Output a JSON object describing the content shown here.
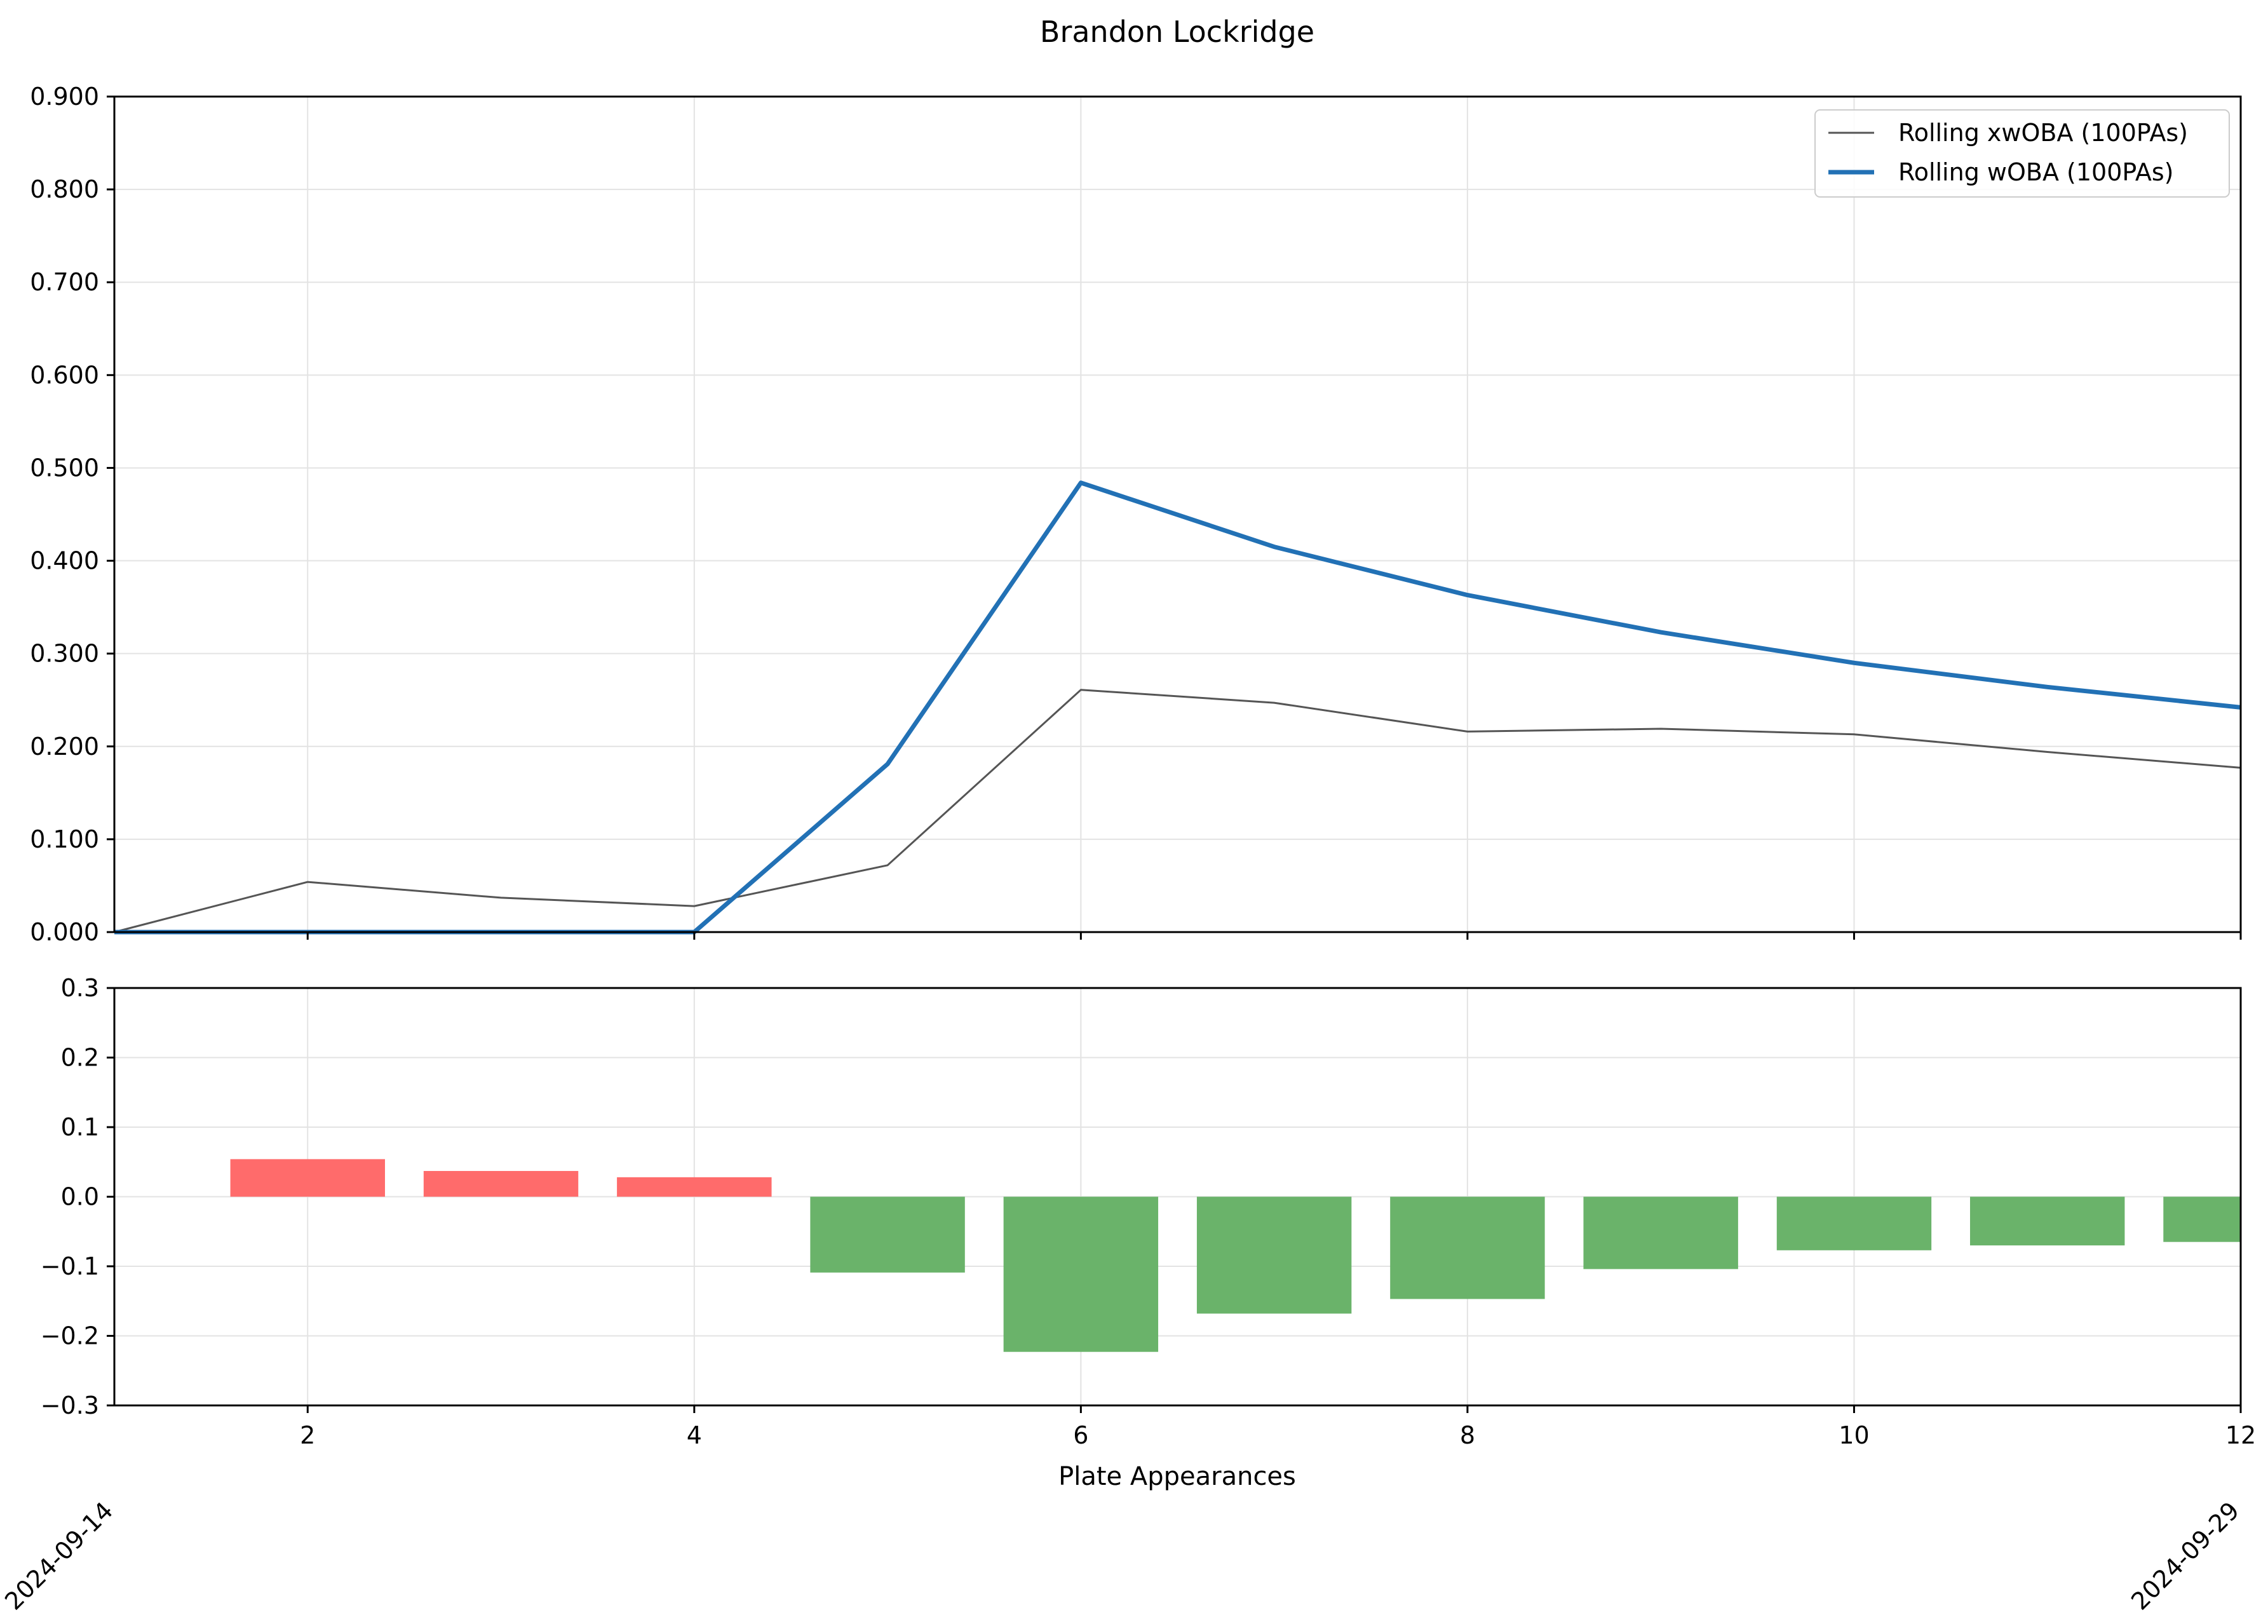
{
  "chart_data": {
    "title": "Brandon Lockridge",
    "xlabel": "Plate Appearances",
    "xlim": [
      1,
      12
    ],
    "x_ticks": [
      2,
      4,
      6,
      8,
      10,
      12
    ],
    "date_labels": [
      {
        "x": 1,
        "label": "2024-09-14"
      },
      {
        "x": 12,
        "label": "2024-09-29"
      }
    ],
    "top": {
      "type": "line",
      "ylim": [
        0.0,
        0.9
      ],
      "y_ticks": [
        0.0,
        0.1,
        0.2,
        0.3,
        0.4,
        0.5,
        0.6,
        0.7,
        0.8,
        0.9
      ],
      "y_tick_labels": [
        "0.000",
        "0.100",
        "0.200",
        "0.300",
        "0.400",
        "0.500",
        "0.600",
        "0.700",
        "0.800",
        "0.900"
      ],
      "grid": true,
      "legend_position": "top-right",
      "series": [
        {
          "name": "Rolling xwOBA (100PAs)",
          "color": "#555555",
          "x": [
            1,
            2,
            3,
            4,
            5,
            6,
            7,
            8,
            9,
            10,
            11,
            12
          ],
          "values": [
            0.0,
            0.054,
            0.037,
            0.028,
            0.072,
            0.261,
            0.247,
            0.216,
            0.219,
            0.213,
            0.194,
            0.177
          ]
        },
        {
          "name": "Rolling wOBA (100PAs)",
          "color": "#2271b5",
          "x": [
            1,
            2,
            3,
            4,
            5,
            6,
            7,
            8,
            9,
            10,
            11,
            12
          ],
          "values": [
            0.0,
            0.0,
            0.0,
            0.0,
            0.181,
            0.484,
            0.415,
            0.363,
            0.323,
            0.29,
            0.264,
            0.242
          ]
        }
      ]
    },
    "bottom": {
      "type": "bar",
      "ylim": [
        -0.3,
        0.3
      ],
      "y_ticks": [
        -0.3,
        -0.2,
        -0.1,
        0.0,
        0.1,
        0.2,
        0.3
      ],
      "y_tick_labels": [
        "−0.3",
        "−0.2",
        "−0.1",
        "0.0",
        "0.1",
        "0.2",
        "0.3"
      ],
      "grid": true,
      "positive_color": "#ff6b6b",
      "negative_color": "#6ab36a",
      "x": [
        2,
        3,
        4,
        5,
        6,
        7,
        8,
        9,
        10,
        11,
        12
      ],
      "values": [
        0.054,
        0.037,
        0.028,
        -0.109,
        -0.223,
        -0.168,
        -0.147,
        -0.104,
        -0.077,
        -0.07,
        -0.065
      ]
    }
  }
}
